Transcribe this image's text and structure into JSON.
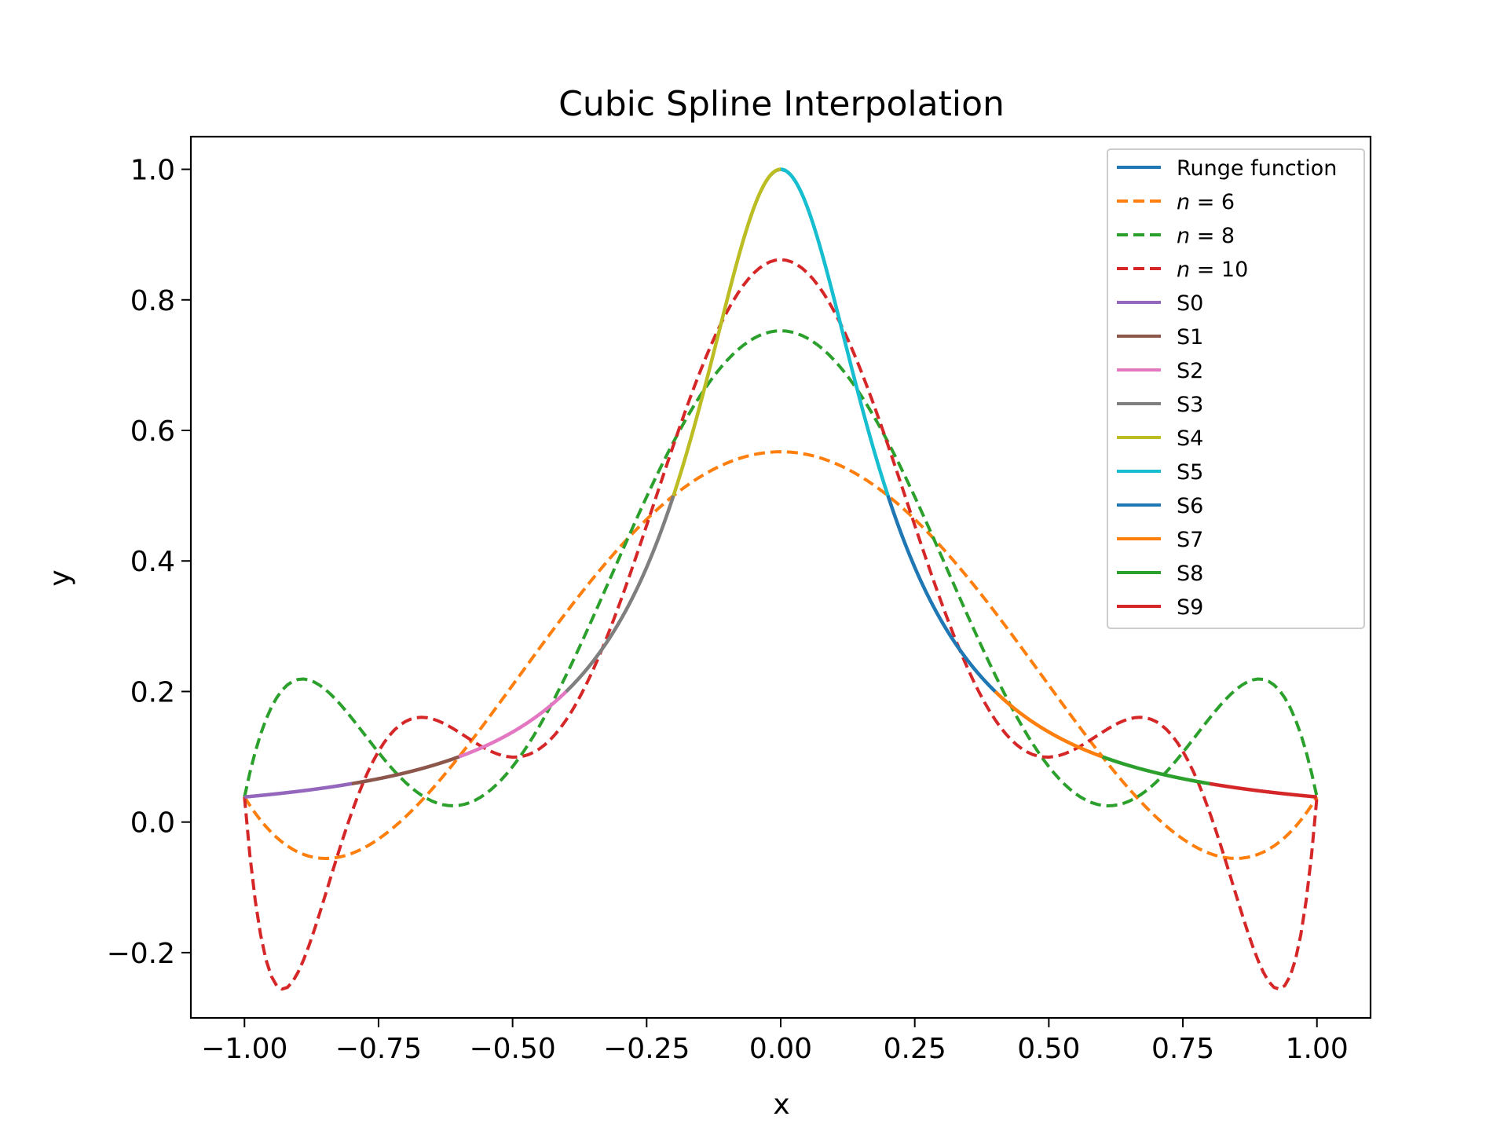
{
  "chart_data": {
    "type": "line",
    "title": "Cubic Spline Interpolation",
    "xlabel": "x",
    "ylabel": "y",
    "xlim": [
      -1.1,
      1.1
    ],
    "ylim": [
      -0.3,
      1.05
    ],
    "xticks": [
      -1.0,
      -0.75,
      -0.5,
      -0.25,
      0.0,
      0.25,
      0.5,
      0.75,
      1.0
    ],
    "xtick_labels": [
      "−1.00",
      "−0.75",
      "−0.50",
      "−0.25",
      "0.00",
      "0.25",
      "0.50",
      "0.75",
      "1.00"
    ],
    "yticks": [
      -0.2,
      0.0,
      0.2,
      0.4,
      0.6,
      0.8,
      1.0
    ],
    "ytick_labels": [
      "−0.2",
      "0.0",
      "0.2",
      "0.4",
      "0.6",
      "0.8",
      "1.0"
    ],
    "grid": false,
    "legend_position": "upper right",
    "series": [
      {
        "name": "Runge function",
        "style": "solid",
        "color": "#1f77b4",
        "kind": "runge",
        "x": [
          -1.0,
          1.0
        ]
      },
      {
        "name": "n = 6",
        "legend_math": {
          "var": "n",
          "value": "6"
        },
        "style": "dashed",
        "color": "#ff7f0e",
        "kind": "poly",
        "nodes": 6
      },
      {
        "name": "n = 8",
        "legend_math": {
          "var": "n",
          "value": "8"
        },
        "style": "dashed",
        "color": "#2ca02c",
        "kind": "poly",
        "nodes": 8
      },
      {
        "name": "n = 10",
        "legend_math": {
          "var": "n",
          "value": "10"
        },
        "style": "dashed",
        "color": "#d62728",
        "kind": "poly",
        "nodes": 10
      },
      {
        "name": "S0",
        "style": "solid",
        "color": "#9467bd",
        "kind": "runge",
        "x": [
          -1.0,
          -0.8
        ]
      },
      {
        "name": "S1",
        "style": "solid",
        "color": "#8c564b",
        "kind": "runge",
        "x": [
          -0.8,
          -0.6
        ]
      },
      {
        "name": "S2",
        "style": "solid",
        "color": "#e377c2",
        "kind": "runge",
        "x": [
          -0.6,
          -0.4
        ]
      },
      {
        "name": "S3",
        "style": "solid",
        "color": "#7f7f7f",
        "kind": "runge",
        "x": [
          -0.4,
          -0.2
        ]
      },
      {
        "name": "S4",
        "style": "solid",
        "color": "#bcbd22",
        "kind": "runge",
        "x": [
          -0.2,
          0.0
        ]
      },
      {
        "name": "S5",
        "style": "solid",
        "color": "#17becf",
        "kind": "runge",
        "x": [
          0.0,
          0.2
        ]
      },
      {
        "name": "S6",
        "style": "solid",
        "color": "#1f77b4",
        "kind": "runge",
        "x": [
          0.2,
          0.4
        ]
      },
      {
        "name": "S7",
        "style": "solid",
        "color": "#ff7f0e",
        "kind": "runge",
        "x": [
          0.4,
          0.6
        ]
      },
      {
        "name": "S8",
        "style": "solid",
        "color": "#2ca02c",
        "kind": "runge",
        "x": [
          0.6,
          0.8
        ]
      },
      {
        "name": "S9",
        "style": "solid",
        "color": "#d62728",
        "kind": "runge",
        "x": [
          0.8,
          1.0
        ]
      }
    ]
  }
}
